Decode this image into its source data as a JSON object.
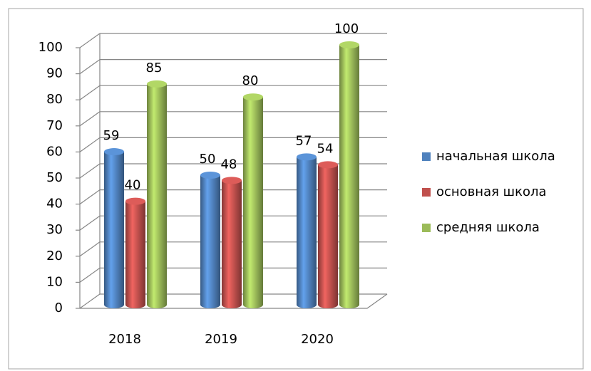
{
  "chart_data": {
    "type": "bar",
    "categories": [
      "2018",
      "2019",
      "2020"
    ],
    "series": [
      {
        "name": "начальная школа",
        "color": "#4f81bd",
        "values": [
          59,
          50,
          57
        ]
      },
      {
        "name": "основная школа",
        "color": "#c0504d",
        "values": [
          40,
          48,
          54
        ]
      },
      {
        "name": "средняя школа",
        "color": "#9bbb59",
        "values": [
          85,
          80,
          100
        ]
      }
    ],
    "ylim": [
      0,
      100
    ],
    "yticks": [
      0,
      10,
      20,
      30,
      40,
      50,
      60,
      70,
      80,
      90,
      100
    ],
    "grid": true,
    "legend": "right"
  }
}
